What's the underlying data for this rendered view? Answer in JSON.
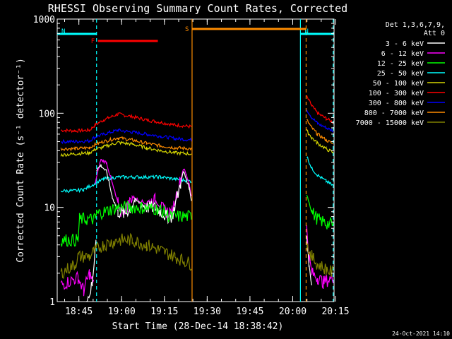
{
  "chart_data": {
    "type": "line",
    "title": "RHESSI Observing Summary Count Rates, Corrected",
    "xlabel": "Start Time (28-Dec-14 18:38:42)",
    "ylabel": "Corrected Count Rate (s⁻¹ detector⁻¹)",
    "y_scale": "log",
    "ylim": [
      1,
      1000
    ],
    "xlim_minutes": [
      -1.3,
      95.8
    ],
    "x_tick_labels": [
      "18:45",
      "19:00",
      "19:15",
      "19:30",
      "19:45",
      "20:00",
      "20:15"
    ],
    "y_tick_labels": [
      "1",
      "10",
      "100",
      "1000"
    ],
    "footer_date": "24-Oct-2021 14:10",
    "legend": {
      "header": [
        "Det 1,3,6,7,9,",
        "Att 0"
      ],
      "placement": "top-right outside",
      "entries": [
        {
          "label": "3 - 6 keV",
          "color": "#ffffff"
        },
        {
          "label": "6 - 12 keV",
          "color": "#ff00ff"
        },
        {
          "label": "12 - 25 keV",
          "color": "#00ff00"
        },
        {
          "label": "25 - 50 keV",
          "color": "#00ffff"
        },
        {
          "label": "50 - 100 keV",
          "color": "#d6d600"
        },
        {
          "label": "100 - 300 keV",
          "color": "#ff0000"
        },
        {
          "label": "300 - 800 keV",
          "color": "#0000ff"
        },
        {
          "label": "800 - 7000 keV",
          "color": "#ff8c00"
        },
        {
          "label": "7000 - 15000 keV",
          "color": "#808000"
        }
      ]
    },
    "flags": [
      {
        "label": "N",
        "color": "#00ffff",
        "minutes": [
          -1.3,
          12.5
        ]
      },
      {
        "label": "N",
        "color": "#00ffff",
        "minutes": [
          84.0,
          95.5
        ]
      },
      {
        "label": "F",
        "color": "#ff0000",
        "minutes": [
          13.0,
          34.0
        ]
      },
      {
        "label": "S",
        "color": "#ff8c00",
        "minutes": [
          46.0,
          86.0
        ]
      }
    ],
    "vertical_lines": [
      {
        "color": "#00ffff",
        "style": "dashed",
        "minute": 12.5
      },
      {
        "color": "#ff8c00",
        "style": "solid",
        "minute": 46.0
      },
      {
        "color": "#00ffff",
        "style": "solid",
        "minute": 84.0
      },
      {
        "color": "#ff8c00",
        "style": "dashed",
        "minute": 86.0
      },
      {
        "color": "#00ffff",
        "style": "dashed",
        "minute": 95.5
      }
    ],
    "series": [
      {
        "name": "100 - 300 keV",
        "color": "#ff0000",
        "segments": [
          {
            "x": [
              0,
              5,
              10,
              12,
              15,
              20,
              25,
              30,
              35,
              40,
              45.8
            ],
            "y": [
              66,
              65,
              66,
              75,
              85,
              98,
              92,
              85,
              80,
              75,
              72
            ]
          },
          {
            "x": [
              86.2,
              88,
              90,
              93,
              95.5
            ],
            "y": [
              150,
              120,
              100,
              88,
              80
            ]
          }
        ]
      },
      {
        "name": "300 - 800 keV",
        "color": "#0000ff",
        "segments": [
          {
            "x": [
              0,
              5,
              10,
              12,
              15,
              20,
              25,
              30,
              35,
              40,
              45.8
            ],
            "y": [
              50,
              50,
              51,
              56,
              60,
              66,
              63,
              60,
              57,
              54,
              52
            ]
          },
          {
            "x": [
              86.2,
              88,
              90,
              93,
              95.5
            ],
            "y": [
              110,
              90,
              78,
              70,
              65
            ]
          }
        ]
      },
      {
        "name": "800 - 7000 keV",
        "color": "#ff8c00",
        "segments": [
          {
            "x": [
              0,
              5,
              10,
              12,
              15,
              20,
              25,
              30,
              35,
              40,
              45.8
            ],
            "y": [
              42,
              42,
              43,
              47,
              50,
              55,
              52,
              48,
              45,
              43,
              42
            ]
          },
          {
            "x": [
              86.2,
              88,
              90,
              93,
              95.5
            ],
            "y": [
              85,
              70,
              60,
              52,
              47
            ]
          }
        ]
      },
      {
        "name": "50 - 100 keV",
        "color": "#d6d600",
        "segments": [
          {
            "x": [
              0,
              5,
              10,
              12,
              15,
              20,
              25,
              30,
              35,
              40,
              45.8
            ],
            "y": [
              36,
              37,
              38,
              41,
              44,
              49,
              47,
              43,
              40,
              38,
              37
            ]
          },
          {
            "x": [
              86.2,
              88,
              90,
              93,
              95.5
            ],
            "y": [
              65,
              55,
              48,
              42,
              38
            ]
          }
        ]
      },
      {
        "name": "25 - 50 keV",
        "color": "#00ffff",
        "segments": [
          {
            "x": [
              0,
              5,
              8,
              12,
              15,
              20,
              25,
              30,
              35,
              40,
              45.8
            ],
            "y": [
              15,
              15,
              15.5,
              18,
              20,
              21,
              21,
              21,
              21,
              20,
              19
            ]
          },
          {
            "x": [
              86.2,
              88,
              90,
              93,
              95.5
            ],
            "y": [
              35,
              26,
              22,
              19,
              17
            ]
          }
        ]
      },
      {
        "name": "6 - 12 keV",
        "color": "#ff00ff",
        "segments": [
          {
            "x": [
              0,
              6,
              8,
              10,
              11.5
            ],
            "y": [
              1.5,
              1.8,
              1.3,
              2.0,
              1.5
            ]
          },
          {
            "x": [
              12,
              14,
              16,
              18,
              20,
              21,
              23,
              25,
              27,
              30,
              33,
              35,
              37,
              39,
              42,
              43,
              44,
              45,
              45.8
            ],
            "y": [
              18,
              32,
              30,
              18,
              11,
              9,
              10,
              13,
              12,
              11,
              12,
              10,
              9,
              9,
              20,
              26,
              22,
              18,
              13
            ]
          },
          {
            "x": [
              86.2,
              87,
              88,
              90,
              92,
              95.5
            ],
            "y": [
              6,
              3,
              2,
              1.8,
              1.6,
              1.8
            ]
          }
        ]
      },
      {
        "name": "3 - 6 keV",
        "color": "#ffffff",
        "segments": [
          {
            "x": [
              9,
              11,
              12.3
            ],
            "y": [
              1.0,
              1.5,
              5.0
            ]
          },
          {
            "x": [
              12.5,
              14,
              16,
              18,
              20,
              22,
              24,
              26,
              28,
              30,
              33,
              35,
              37,
              39,
              42,
              43,
              44,
              45,
              45.8
            ],
            "y": [
              25,
              28,
              24,
              13,
              9,
              8.5,
              9.5,
              12,
              11,
              10,
              10,
              9,
              8,
              8,
              18,
              24,
              20,
              16,
              12
            ]
          },
          {
            "x": [
              86.2,
              87,
              88
            ],
            "y": [
              5,
              2.5,
              1.5
            ]
          }
        ]
      },
      {
        "name": "12 - 25 keV",
        "color": "#00ff00",
        "segments": [
          {
            "x": [
              0,
              6,
              6.5,
              12,
              12.5,
              20,
              28,
              35,
              38,
              45.8
            ],
            "y": [
              4.5,
              4.5,
              7.5,
              7.5,
              8.5,
              10,
              10,
              9.5,
              8,
              8
            ]
          },
          {
            "x": [
              86.2,
              88,
              90,
              93,
              95.5
            ],
            "y": [
              14,
              9,
              7.5,
              6.8,
              6.5
            ]
          }
        ]
      },
      {
        "name": "7000 - 15000 keV",
        "color": "#808000",
        "segments": [
          {
            "x": [
              0,
              5,
              6,
              10,
              12,
              15,
              20,
              25,
              30,
              35,
              40,
              45.8
            ],
            "y": [
              2.0,
              2.5,
              3.0,
              3.0,
              3.5,
              4.0,
              4.5,
              4.5,
              4.0,
              3.5,
              3.0,
              2.5
            ]
          },
          {
            "x": [
              86.2,
              88,
              90,
              93,
              95.5
            ],
            "y": [
              4.0,
              3.0,
              2.5,
              2.2,
              2.0
            ]
          }
        ]
      }
    ]
  }
}
